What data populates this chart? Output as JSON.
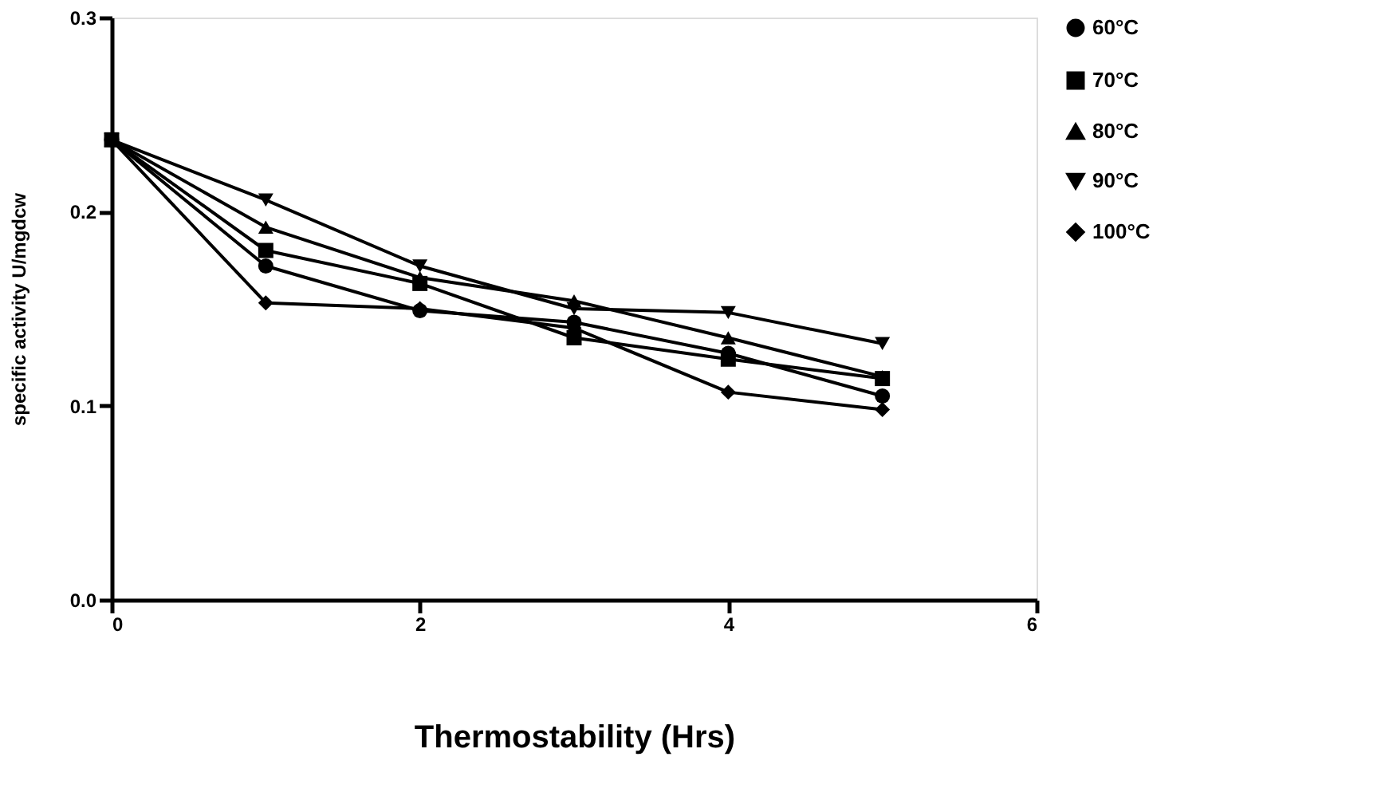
{
  "chart_data": {
    "type": "line",
    "xlabel": "Thermostability (Hrs)",
    "ylabel": "specific activity U/mgdcw",
    "x": [
      0,
      1,
      2,
      3,
      4,
      5
    ],
    "series": [
      {
        "name": "60°C",
        "color": "#000000",
        "marker": "circle",
        "values": [
          0.237,
          0.172,
          0.149,
          0.143,
          0.127,
          0.105
        ]
      },
      {
        "name": "70°C",
        "color": "#000000",
        "marker": "square",
        "values": [
          0.237,
          0.18,
          0.163,
          0.135,
          0.124,
          0.114
        ]
      },
      {
        "name": "80°C",
        "color": "#000000",
        "marker": "triangle",
        "values": [
          0.237,
          0.192,
          0.166,
          0.154,
          0.135,
          0.115
        ]
      },
      {
        "name": "90°C",
        "color": "#000000",
        "marker": "triangle-down",
        "values": [
          0.237,
          0.206,
          0.172,
          0.15,
          0.148,
          0.132
        ]
      },
      {
        "name": "100°C",
        "color": "#000000",
        "marker": "diamond",
        "values": [
          0.237,
          0.153,
          0.15,
          0.14,
          0.107,
          0.098
        ]
      }
    ],
    "xlim": [
      0,
      6
    ],
    "xticks": [
      0,
      2,
      4,
      6
    ],
    "ylim": [
      0,
      0.3
    ],
    "yticks": [
      {
        "value": 0,
        "label": "0.0"
      },
      0.1,
      0.2,
      0.3
    ],
    "grid": false,
    "legend": "right",
    "line_style": "solid"
  }
}
